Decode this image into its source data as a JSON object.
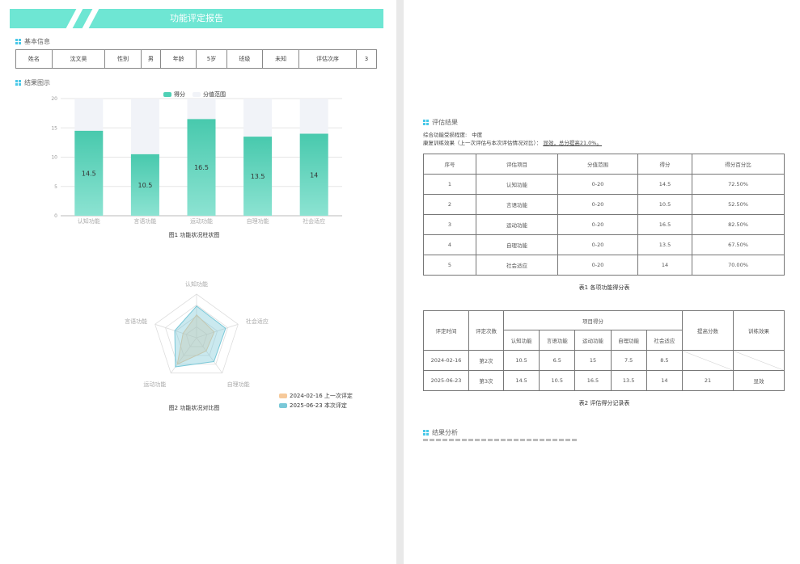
{
  "report": {
    "title": "功能评定报告"
  },
  "sections": {
    "basic": "基本信息",
    "chart": "结果图示",
    "eval": "评估结果",
    "analysis": "结果分析"
  },
  "basic_info": {
    "name_label": "姓名",
    "name": "沈文昊",
    "gender_label": "性别",
    "gender": "男",
    "age_label": "年龄",
    "age": "5岁",
    "class_label": "班级",
    "class": "未知",
    "order_label": "评估次序",
    "order": "3"
  },
  "bar_chart": {
    "legend_score": "得分",
    "legend_range": "分值范围",
    "caption": "图1  功能状况柱状图",
    "colors": {
      "score": "#4fd0b5",
      "range": "#f1f3f8"
    }
  },
  "radar_chart": {
    "caption": "图2  功能状况对比图",
    "legend_prev": "2024-02-16 上一次评定",
    "legend_curr": "2025-06-23 本次评定",
    "colors": {
      "prev": "#f6c99a",
      "curr": "#7ac8d8"
    }
  },
  "chart_data": [
    {
      "type": "bar",
      "categories": [
        "认知功能",
        "言语功能",
        "运动功能",
        "自理功能",
        "社会适应"
      ],
      "series": [
        {
          "name": "得分",
          "values": [
            14.5,
            10.5,
            16.5,
            13.5,
            14
          ]
        },
        {
          "name": "分值范围",
          "values": [
            20,
            20,
            20,
            20,
            20
          ]
        }
      ],
      "ylim": [
        0,
        20
      ],
      "yticks": [
        0,
        5,
        10,
        15,
        20
      ],
      "grid": true,
      "legend": "top-center"
    },
    {
      "type": "radar",
      "categories": [
        "认知功能",
        "社会适应",
        "自理功能",
        "运动功能",
        "言语功能"
      ],
      "series": [
        {
          "name": "2024-02-16 上一次评定",
          "values": [
            10.5,
            8.5,
            7.5,
            15,
            6.5
          ]
        },
        {
          "name": "2025-06-23 本次评定",
          "values": [
            14.5,
            14,
            13.5,
            16.5,
            10.5
          ]
        }
      ],
      "max": 20,
      "legend": "bottom-right"
    }
  ],
  "eval": {
    "overall_label": "综合功能受损程度:",
    "overall_value": "中度",
    "effect_label": "康复训练效果（上一次评估与本次评估情况对比）：",
    "effect_value": "显效，总分提高21.0%。"
  },
  "score_table": {
    "headers": [
      "序号",
      "评估项目",
      "分值范围",
      "得分",
      "得分百分比"
    ],
    "rows": [
      [
        "1",
        "认知功能",
        "0-20",
        "14.5",
        "72.50%"
      ],
      [
        "2",
        "言语功能",
        "0-20",
        "10.5",
        "52.50%"
      ],
      [
        "3",
        "运动功能",
        "0-20",
        "16.5",
        "82.50%"
      ],
      [
        "4",
        "自理功能",
        "0-20",
        "13.5",
        "67.50%"
      ],
      [
        "5",
        "社会适应",
        "0-20",
        "14",
        "70.00%"
      ]
    ],
    "caption": "表1 各项功能得分表"
  },
  "record_table": {
    "h_date": "评定时间",
    "h_count": "评定次数",
    "h_items": "项目得分",
    "h_improve": "提高分数",
    "h_effect": "训练效果",
    "items": [
      "认知功能",
      "言语功能",
      "运动功能",
      "自理功能",
      "社会适应"
    ],
    "rows": [
      {
        "date": "2024-02-16",
        "count": "第2次",
        "scores": [
          "10.5",
          "6.5",
          "15",
          "7.5",
          "8.5"
        ],
        "improve": "",
        "effect": ""
      },
      {
        "date": "2025-06-23",
        "count": "第3次",
        "scores": [
          "14.5",
          "10.5",
          "16.5",
          "13.5",
          "14"
        ],
        "improve": "21",
        "effect": "显效"
      }
    ],
    "caption": "表2 评估得分记录表"
  }
}
